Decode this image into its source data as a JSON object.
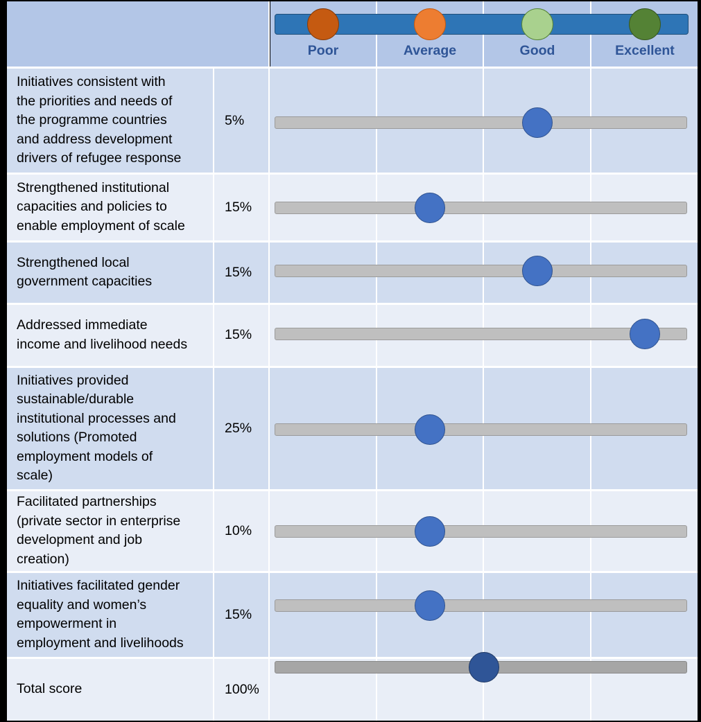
{
  "scale": {
    "labels": [
      "Poor",
      "Average",
      "Good",
      "Excellent"
    ],
    "dot_colors": [
      "#c55a11",
      "#ed7d31",
      "#a9d18e",
      "#548235"
    ],
    "dot_borders": [
      "#843c0c",
      "#c55a11",
      "#548235",
      "#385723"
    ]
  },
  "chart_data": {
    "type": "rating-slider",
    "scale_levels": [
      "Poor",
      "Average",
      "Good",
      "Excellent"
    ],
    "rows": [
      {
        "label": "Initiatives consistent with\nthe priorities and needs of\nthe programme countries\nand address development\ndrivers of refugee response",
        "weight": "5%",
        "rating": 3
      },
      {
        "label": "Strengthened institutional\ncapacities and policies to\nenable employment of scale",
        "weight": "15%",
        "rating": 2
      },
      {
        "label": "Strengthened local\ngovernment capacities",
        "weight": "15%",
        "rating": 3
      },
      {
        "label": "Addressed immediate\nincome and livelihood needs",
        "weight": "15%",
        "rating": 4
      },
      {
        "label": "Initiatives provided\nsustainable/durable\ninstitutional processes and\nsolutions  (Promoted\nemployment models of\nscale)",
        "weight": "25%",
        "rating": 2
      },
      {
        "label": " Facilitated partnerships\n (private sector in enterprise\n development and job\n creation)",
        "weight": "10%",
        "rating": 2
      },
      {
        "label": "Initiatives facilitated gender\nequality and women’s\nempowerment in\nemployment and livelihoods",
        "weight": "15%",
        "rating": 2
      }
    ],
    "total": {
      "label": "Total score",
      "weight": "100%",
      "rating": 2.5
    }
  }
}
